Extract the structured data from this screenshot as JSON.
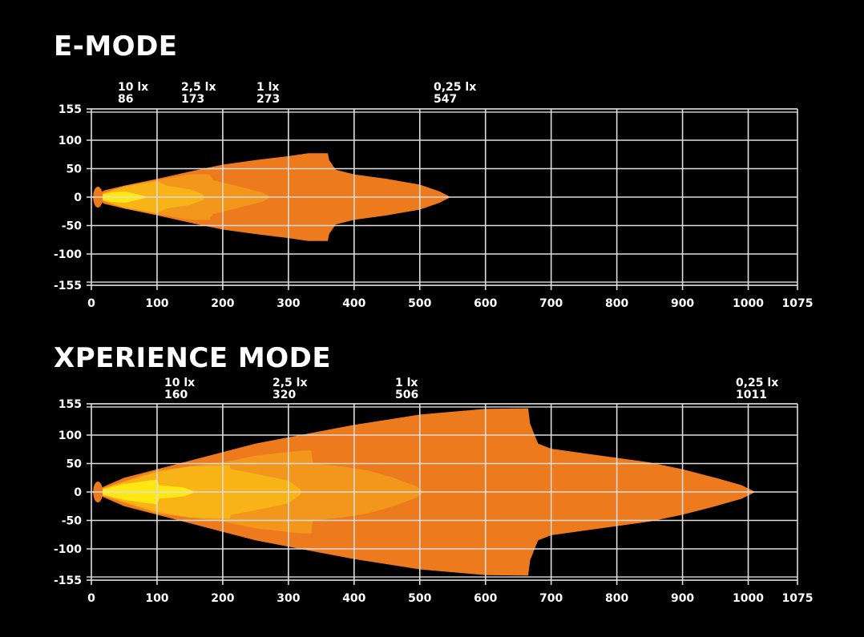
{
  "chart_data": [
    {
      "type": "area",
      "title": "E-MODE",
      "xlabel": "",
      "ylabel": "",
      "xlim": [
        0,
        1075
      ],
      "ylim": [
        -155,
        155
      ],
      "xticks": [
        0,
        100,
        200,
        300,
        400,
        500,
        600,
        700,
        800,
        900,
        1000,
        1075
      ],
      "yticks": [
        155,
        100,
        50,
        0,
        -50,
        -100,
        -155
      ],
      "grid": true,
      "isolux_labels": [
        {
          "lux": "10 lx",
          "distance": "86"
        },
        {
          "lux": "2,5 lx",
          "distance": "173"
        },
        {
          "lux": "1 lx",
          "distance": "273"
        },
        {
          "lux": "0,25 lx",
          "distance": "547"
        }
      ],
      "series": [
        {
          "name": "0,25 lx",
          "color": "#ee7a1e",
          "upper": [
            [
              0,
              0
            ],
            [
              20,
              12
            ],
            [
              50,
              20
            ],
            [
              100,
              32
            ],
            [
              150,
              45
            ],
            [
              200,
              57
            ],
            [
              250,
              65
            ],
            [
              300,
              72
            ],
            [
              330,
              77
            ],
            [
              360,
              77
            ],
            [
              362,
              65
            ],
            [
              372,
              48
            ],
            [
              400,
              40
            ],
            [
              450,
              32
            ],
            [
              500,
              22
            ],
            [
              530,
              10
            ],
            [
              547,
              0
            ]
          ]
        },
        {
          "name": "1 lx",
          "color": "#f2961c",
          "upper": [
            [
              0,
              0
            ],
            [
              50,
              20
            ],
            [
              100,
              30
            ],
            [
              150,
              40
            ],
            [
              180,
              40
            ],
            [
              185,
              30
            ],
            [
              220,
              20
            ],
            [
              260,
              8
            ],
            [
              273,
              0
            ]
          ]
        },
        {
          "name": "2,5 lx",
          "color": "#f8b316",
          "upper": [
            [
              0,
              0
            ],
            [
              50,
              18
            ],
            [
              100,
              28
            ],
            [
              115,
              20
            ],
            [
              150,
              14
            ],
            [
              170,
              5
            ],
            [
              173,
              0
            ]
          ]
        },
        {
          "name": "10 lx",
          "color": "#ffe812",
          "upper": [
            [
              0,
              0
            ],
            [
              30,
              8
            ],
            [
              50,
              10
            ],
            [
              70,
              5
            ],
            [
              86,
              0
            ]
          ]
        }
      ]
    },
    {
      "type": "area",
      "title": "XPERIENCE MODE",
      "xlabel": "",
      "ylabel": "",
      "xlim": [
        0,
        1075
      ],
      "ylim": [
        -155,
        155
      ],
      "xticks": [
        0,
        100,
        200,
        300,
        400,
        500,
        600,
        700,
        800,
        900,
        1000,
        1075
      ],
      "yticks": [
        155,
        100,
        50,
        0,
        -50,
        -100,
        -155
      ],
      "grid": true,
      "isolux_labels": [
        {
          "lux": "10 lx",
          "distance": "160"
        },
        {
          "lux": "2,5 lx",
          "distance": "320"
        },
        {
          "lux": "1 lx",
          "distance": "506"
        },
        {
          "lux": "0,25 lx",
          "distance": "1011"
        }
      ],
      "series": [
        {
          "name": "0,25 lx",
          "color": "#ee7a1e",
          "upper": [
            [
              0,
              0
            ],
            [
              50,
              25
            ],
            [
              100,
              40
            ],
            [
              150,
              55
            ],
            [
              200,
              70
            ],
            [
              250,
              85
            ],
            [
              300,
              96
            ],
            [
              400,
              118
            ],
            [
              500,
              136
            ],
            [
              600,
              146
            ],
            [
              665,
              147
            ],
            [
              668,
              120
            ],
            [
              680,
              85
            ],
            [
              700,
              76
            ],
            [
              750,
              68
            ],
            [
              800,
              60
            ],
            [
              850,
              52
            ],
            [
              900,
              40
            ],
            [
              950,
              25
            ],
            [
              990,
              12
            ],
            [
              1011,
              0
            ]
          ]
        },
        {
          "name": "1 lx",
          "color": "#f2961c",
          "upper": [
            [
              0,
              0
            ],
            [
              100,
              38
            ],
            [
              200,
              52
            ],
            [
              250,
              64
            ],
            [
              320,
              73
            ],
            [
              335,
              73
            ],
            [
              337,
              50
            ],
            [
              380,
              45
            ],
            [
              420,
              38
            ],
            [
              460,
              25
            ],
            [
              495,
              10
            ],
            [
              506,
              0
            ]
          ]
        },
        {
          "name": "2,5 lx",
          "color": "#f8b316",
          "upper": [
            [
              0,
              0
            ],
            [
              100,
              35
            ],
            [
              150,
              45
            ],
            [
              210,
              47
            ],
            [
              213,
              40
            ],
            [
              250,
              32
            ],
            [
              300,
              20
            ],
            [
              318,
              5
            ],
            [
              320,
              0
            ]
          ]
        },
        {
          "name": "10 lx",
          "color": "#ffe812",
          "upper": [
            [
              0,
              0
            ],
            [
              50,
              14
            ],
            [
              100,
              22
            ],
            [
              103,
              12
            ],
            [
              140,
              8
            ],
            [
              160,
              0
            ]
          ]
        }
      ]
    }
  ]
}
